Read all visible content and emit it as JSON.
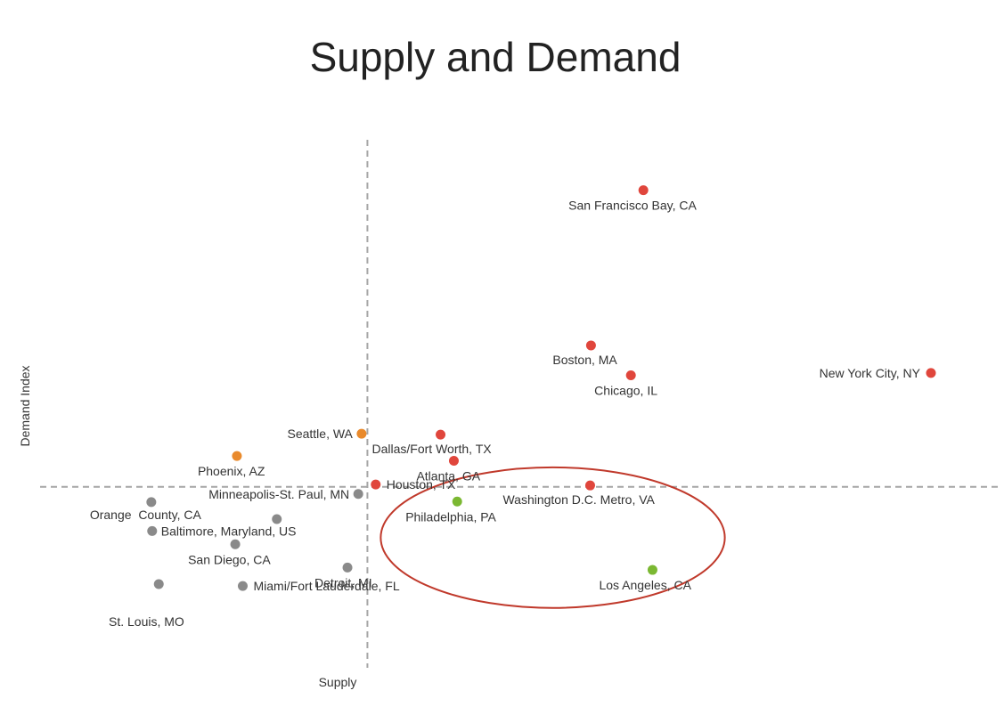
{
  "chart_data": {
    "type": "scatter",
    "title": "Supply and Demand",
    "xlabel": "Supply",
    "ylabel": "Demand Index",
    "xlim": [
      0,
      100
    ],
    "ylim": [
      0,
      100
    ],
    "grid": false,
    "reference_lines": {
      "x": 32.2,
      "y": 32.5
    },
    "colors": {
      "red": "#e0463c",
      "orange": "#e98a2c",
      "green": "#7bb832",
      "gray": "#8a8a8a",
      "highlight": "#c0392b"
    },
    "highlight_ellipse": {
      "cx": 54.5,
      "cy": 21.8,
      "rx": 20.7,
      "ry": 14.8
    },
    "points": [
      {
        "label": "San Francisco Bay, CA",
        "x": 65.4,
        "y": 95.0,
        "color": "red"
      },
      {
        "label": "Boston, MA",
        "x": 59.1,
        "y": 62.3,
        "color": "red"
      },
      {
        "label": "Chicago, IL",
        "x": 63.9,
        "y": 56.0,
        "color": "red"
      },
      {
        "label": "New York City, NY",
        "x": 100.0,
        "y": 56.5,
        "color": "red"
      },
      {
        "label": "Dallas/Fort Worth, TX",
        "x": 41.0,
        "y": 43.5,
        "color": "red"
      },
      {
        "label": "Atlanta, GA",
        "x": 42.6,
        "y": 38.0,
        "color": "red"
      },
      {
        "label": "Houston, TX",
        "x": 33.2,
        "y": 33.0,
        "color": "red"
      },
      {
        "label": "Washington D.C. Metro, VA",
        "x": 59.0,
        "y": 32.8,
        "color": "red"
      },
      {
        "label": "Seattle, WA",
        "x": 31.5,
        "y": 43.7,
        "color": "orange"
      },
      {
        "label": "Phoenix, AZ",
        "x": 16.5,
        "y": 39.0,
        "color": "orange"
      },
      {
        "label": "Philadelphia, PA",
        "x": 43.0,
        "y": 29.4,
        "color": "green"
      },
      {
        "label": "Los Angeles, CA",
        "x": 66.5,
        "y": 15.0,
        "color": "green"
      },
      {
        "label": "Minneapolis-St. Paul, MN",
        "x": 31.1,
        "y": 31.0,
        "color": "gray"
      },
      {
        "label": "Orange  County, CA",
        "x": 6.2,
        "y": 29.3,
        "color": "gray"
      },
      {
        "label": "Baltimore, Maryland, US",
        "x": 6.3,
        "y": 23.2,
        "color": "gray"
      },
      {
        "label": "",
        "x": 21.3,
        "y": 25.7,
        "color": "gray"
      },
      {
        "label": "San Diego, CA",
        "x": 16.3,
        "y": 20.4,
        "color": "gray"
      },
      {
        "label": "Detroit, MI",
        "x": 29.8,
        "y": 15.5,
        "color": "gray"
      },
      {
        "label": "St. Louis, MO",
        "x": 7.1,
        "y": 12.0,
        "color": "gray"
      },
      {
        "label": "Miami/Fort Lauderdale, FL",
        "x": 17.2,
        "y": 11.6,
        "color": "gray"
      }
    ]
  }
}
